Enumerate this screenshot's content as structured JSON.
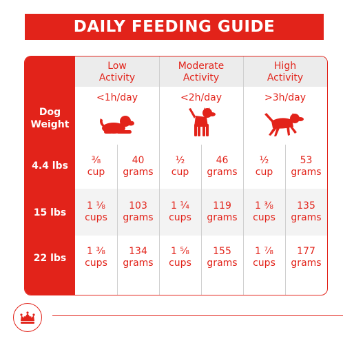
{
  "title": "DAILY FEEDING GUIDE",
  "row_header": {
    "line1": "Dog",
    "line2": "Weight"
  },
  "columns": [
    {
      "label_line1": "Low",
      "label_line2": "Activity",
      "duration": "<1h/day",
      "icon": "lying-dog-icon"
    },
    {
      "label_line1": "Moderate",
      "label_line2": "Activity",
      "duration": "<2h/day",
      "icon": "standing-dog-icon"
    },
    {
      "label_line1": "High",
      "label_line2": "Activity",
      "duration": ">3h/day",
      "icon": "running-dog-icon"
    }
  ],
  "rows": [
    {
      "weight": "4.4 lbs",
      "cells": [
        {
          "cups": "⅜",
          "cups_unit": "cup",
          "grams": "40",
          "grams_unit": "grams"
        },
        {
          "cups": "½",
          "cups_unit": "cup",
          "grams": "46",
          "grams_unit": "grams"
        },
        {
          "cups": "½",
          "cups_unit": "cup",
          "grams": "53",
          "grams_unit": "grams"
        }
      ]
    },
    {
      "weight": "15 lbs",
      "cells": [
        {
          "cups": "1 ⅛",
          "cups_unit": "cups",
          "grams": "103",
          "grams_unit": "grams"
        },
        {
          "cups": "1 ¼",
          "cups_unit": "cups",
          "grams": "119",
          "grams_unit": "grams"
        },
        {
          "cups": "1 ⅜",
          "cups_unit": "cups",
          "grams": "135",
          "grams_unit": "grams"
        }
      ]
    },
    {
      "weight": "22 lbs",
      "cells": [
        {
          "cups": "1 ⅜",
          "cups_unit": "cups",
          "grams": "134",
          "grams_unit": "grams"
        },
        {
          "cups": "1 ⅝",
          "cups_unit": "cups",
          "grams": "155",
          "grams_unit": "grams"
        },
        {
          "cups": "1 ⅞",
          "cups_unit": "cups",
          "grams": "177",
          "grams_unit": "grams"
        }
      ]
    }
  ],
  "colors": {
    "accent": "#e2231a",
    "header_bg": "#ececec",
    "band_bg": "#f3f3f3",
    "divider": "#cfcfcf"
  },
  "logo_icon": "crown-logo-icon"
}
